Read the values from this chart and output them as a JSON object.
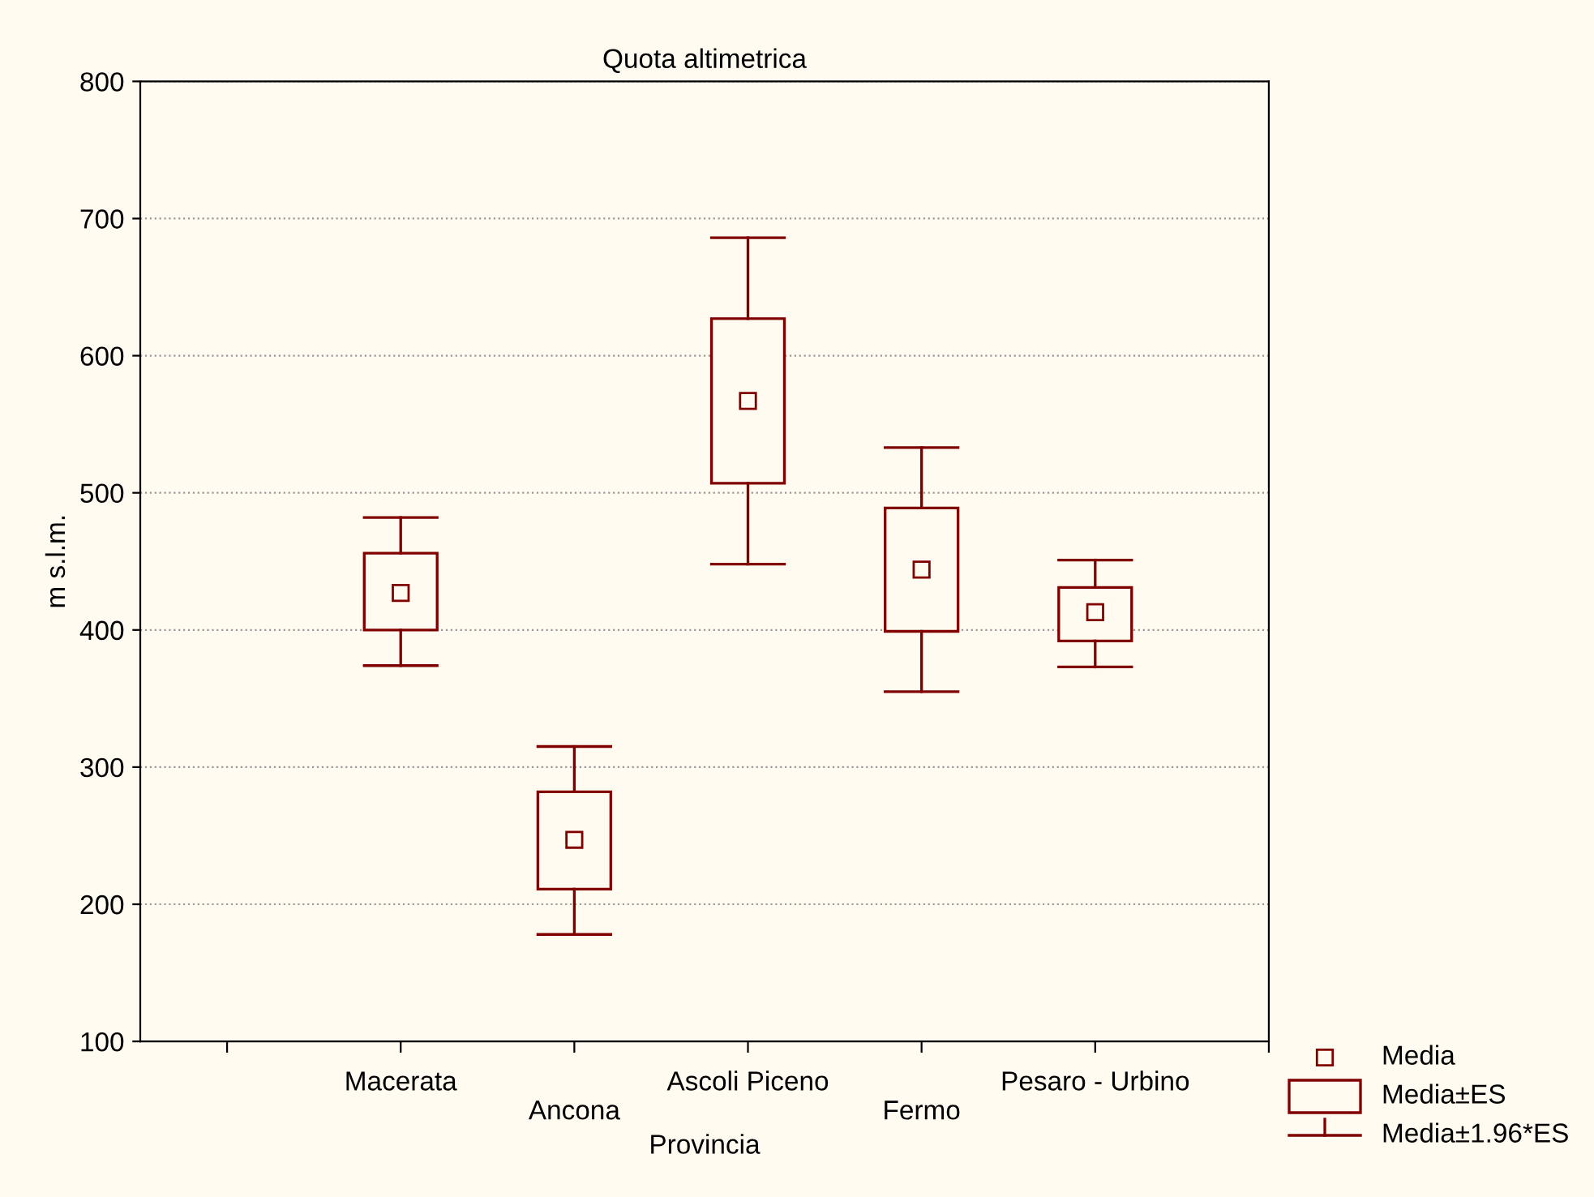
{
  "chart_data": {
    "type": "box",
    "title": "Quota altimetrica",
    "xlabel": "Provincia",
    "ylabel": "m s.l.m.",
    "categories": [
      "Macerata",
      "Ancona",
      "Ascoli Piceno",
      "Fermo",
      "Pesaro - Urbino"
    ],
    "ylim": [
      100,
      800
    ],
    "yticks": [
      100,
      200,
      300,
      400,
      500,
      600,
      700,
      800
    ],
    "grid": "y",
    "marker": "square",
    "series": [
      {
        "color": "#800000",
        "boxes": [
          {
            "low": 374,
            "q1": 400,
            "mean": 427,
            "q3": 456,
            "high": 482
          },
          {
            "low": 178,
            "q1": 211,
            "mean": 247,
            "q3": 282,
            "high": 315
          },
          {
            "low": 448,
            "q1": 507,
            "mean": 567,
            "q3": 627,
            "high": 686
          },
          {
            "low": 355,
            "q1": 399,
            "mean": 444,
            "q3": 489,
            "high": 533
          },
          {
            "low": 373,
            "q1": 392,
            "mean": 413,
            "q3": 431,
            "high": 451
          }
        ]
      }
    ],
    "annotations": [
      "Media",
      "Media±ES",
      "Media±1.96*ES"
    ]
  }
}
